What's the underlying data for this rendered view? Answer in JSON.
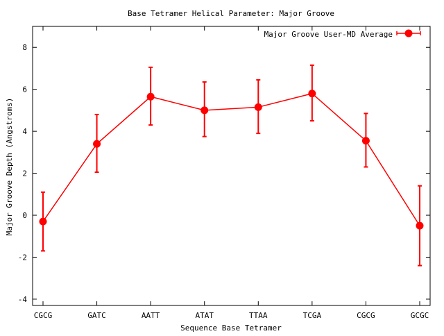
{
  "chart_data": {
    "type": "line",
    "title": "Base Tetramer Helical Parameter: Major Groove",
    "xlabel": "Sequence Base Tetramer",
    "ylabel": "Major Groove Depth (Angstroms)",
    "categories": [
      "CGCG",
      "GATC",
      "AATT",
      "ATAT",
      "TTAA",
      "TCGA",
      "CGCG",
      "GCGC"
    ],
    "ylim": [
      -4.3,
      9
    ],
    "yticks": [
      -4,
      -2,
      0,
      2,
      4,
      6,
      8
    ],
    "grid": false,
    "legend_position": "top-right",
    "series": [
      {
        "name": "Major Groove User-MD Average",
        "color": "#ff0000",
        "values": [
          -0.3,
          3.4,
          5.65,
          5.0,
          5.15,
          5.8,
          3.55,
          -0.5
        ],
        "error_low": [
          -1.7,
          2.05,
          4.3,
          3.75,
          3.9,
          4.5,
          2.3,
          -2.4
        ],
        "error_high": [
          1.1,
          4.8,
          7.05,
          6.35,
          6.45,
          7.15,
          4.85,
          1.4
        ]
      }
    ]
  }
}
